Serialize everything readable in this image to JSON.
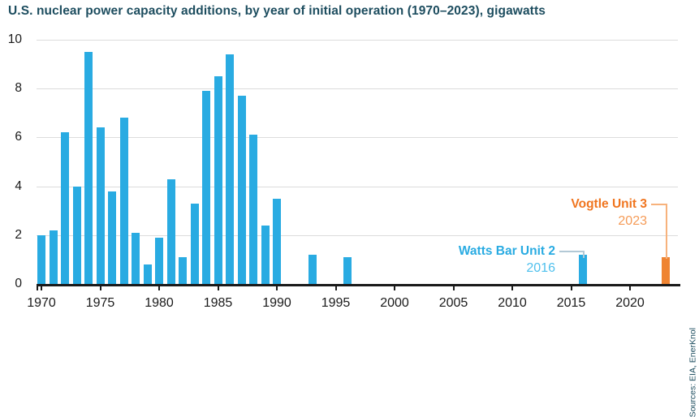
{
  "chart_data": {
    "type": "bar",
    "title": "U.S. nuclear power capacity additions, by year of initial operation (1970–2023), gigawatts",
    "units": "gigawatts",
    "ylim": [
      0,
      10
    ],
    "yticks": [
      0,
      2,
      4,
      6,
      8,
      10
    ],
    "xticks": [
      1970,
      1975,
      1980,
      1985,
      1990,
      1995,
      2000,
      2005,
      2010,
      2015,
      2020
    ],
    "x_range": [
      1970,
      2023
    ],
    "grid": true,
    "bar_color": "#29abe2",
    "highlight_color": "#ef8432",
    "highlight_year": 2023,
    "points": [
      {
        "year": 1970,
        "value": 2.0
      },
      {
        "year": 1971,
        "value": 2.2
      },
      {
        "year": 1972,
        "value": 6.2
      },
      {
        "year": 1973,
        "value": 4.0
      },
      {
        "year": 1974,
        "value": 9.5
      },
      {
        "year": 1975,
        "value": 6.4
      },
      {
        "year": 1976,
        "value": 3.8
      },
      {
        "year": 1977,
        "value": 6.8
      },
      {
        "year": 1978,
        "value": 2.1
      },
      {
        "year": 1979,
        "value": 0.8
      },
      {
        "year": 1980,
        "value": 1.9
      },
      {
        "year": 1981,
        "value": 4.3
      },
      {
        "year": 1982,
        "value": 1.1
      },
      {
        "year": 1983,
        "value": 3.3
      },
      {
        "year": 1984,
        "value": 7.9
      },
      {
        "year": 1985,
        "value": 8.5
      },
      {
        "year": 1986,
        "value": 9.4
      },
      {
        "year": 1987,
        "value": 7.7
      },
      {
        "year": 1988,
        "value": 6.1
      },
      {
        "year": 1989,
        "value": 2.4
      },
      {
        "year": 1990,
        "value": 3.5
      },
      {
        "year": 1993,
        "value": 1.2
      },
      {
        "year": 1996,
        "value": 1.1
      },
      {
        "year": 2016,
        "value": 1.2
      },
      {
        "year": 2023,
        "value": 1.1
      }
    ],
    "annotations": [
      {
        "label": "Watts Bar Unit 2",
        "year_text": "2016",
        "label_color": "#29abe2",
        "year_color": "#4fc0ed"
      },
      {
        "label": "Vogtle Unit 3",
        "year_text": "2023",
        "label_color": "#f0751f",
        "year_color": "#f59b57"
      }
    ],
    "source_note": "Sources: EIA, EnerKnol",
    "legend": "none"
  },
  "colors": {
    "title": "#1d4d5f",
    "axis": "#1a1a1a",
    "gridline": "#dcdcdc"
  }
}
